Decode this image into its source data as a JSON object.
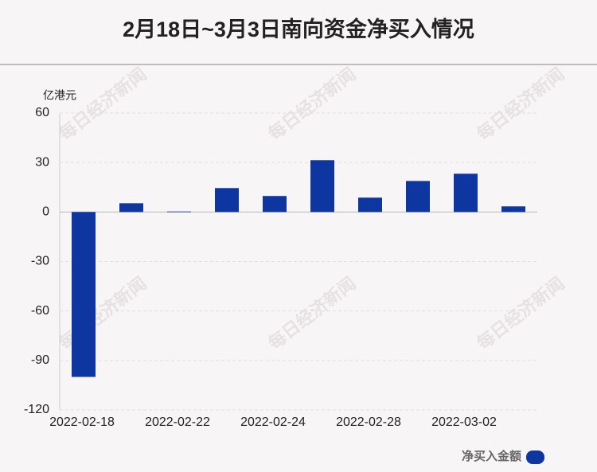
{
  "chart_data": {
    "type": "bar",
    "title": "2月18日~3月3日南向资金净买入情况",
    "watermark": "每日经济新闻",
    "y_label": "亿港元",
    "categories": [
      "2022-02-18",
      null,
      "2022-02-22",
      null,
      "2022-02-24",
      null,
      "2022-02-28",
      null,
      "2022-03-02",
      null
    ],
    "series": [
      {
        "name": "净买入金额",
        "color": "#0d36a0",
        "values": [
          -100,
          5.3,
          0.3,
          14.5,
          9.7,
          31.4,
          8.7,
          18.8,
          23.2,
          3.4
        ]
      }
    ],
    "ylim": [
      -120,
      60
    ],
    "yticks": [
      60,
      30,
      0,
      -30,
      -60,
      -90,
      -120
    ],
    "grid": true
  }
}
